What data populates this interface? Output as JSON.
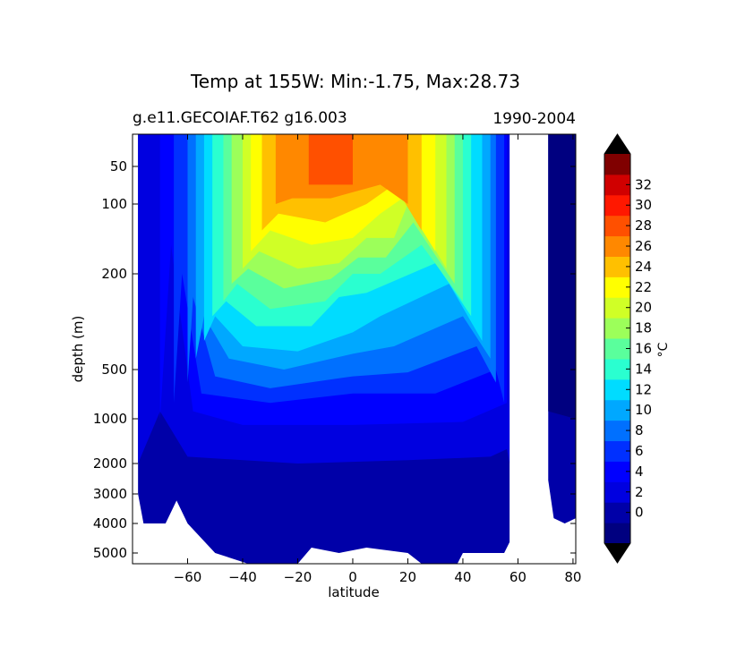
{
  "chart_data": {
    "type": "contourf",
    "title": "Temp at 155W: Min:-1.75, Max:28.73",
    "subtitle_left": "g.e11.GECOIAF.T62 g16.003",
    "subtitle_right": "1990-2004",
    "xlabel": "latitude",
    "ylabel": "depth (m)",
    "xlim": [
      -80,
      81
    ],
    "ylim": [
      5500,
      10
    ],
    "y_scale": "log-like (inverted)",
    "x_ticks": [
      {
        "value": -60,
        "label": "−60"
      },
      {
        "value": -40,
        "label": "−40"
      },
      {
        "value": -20,
        "label": "−20"
      },
      {
        "value": 0,
        "label": "0"
      },
      {
        "value": 20,
        "label": "20"
      },
      {
        "value": 40,
        "label": "40"
      },
      {
        "value": 60,
        "label": "60"
      },
      {
        "value": 80,
        "label": "80"
      }
    ],
    "y_ticks": [
      {
        "value": 50,
        "label": "50"
      },
      {
        "value": 100,
        "label": "100"
      },
      {
        "value": 200,
        "label": "200"
      },
      {
        "value": 500,
        "label": "500"
      },
      {
        "value": 1000,
        "label": "1000"
      },
      {
        "value": 2000,
        "label": "2000"
      },
      {
        "value": 3000,
        "label": "3000"
      },
      {
        "value": 4000,
        "label": "4000"
      },
      {
        "value": 5000,
        "label": "5000"
      }
    ],
    "colorbar": {
      "label": "°C",
      "ticks": [
        "0",
        "2",
        "4",
        "6",
        "8",
        "10",
        "12",
        "14",
        "16",
        "18",
        "20",
        "22",
        "24",
        "26",
        "28",
        "30",
        "32"
      ],
      "levels": [
        -2,
        0,
        2,
        4,
        6,
        8,
        10,
        12,
        14,
        16,
        18,
        20,
        22,
        24,
        26,
        28,
        30,
        32,
        34
      ],
      "colors": [
        "#000080",
        "#0000a8",
        "#0000e0",
        "#0000ff",
        "#0030ff",
        "#0070ff",
        "#00a8ff",
        "#00dcff",
        "#2affd0",
        "#5aff9c",
        "#9cff5a",
        "#d0ff26",
        "#ffff00",
        "#ffc000",
        "#ff8800",
        "#ff5000",
        "#ff1800",
        "#d00000",
        "#800000"
      ],
      "extend_low_color": "#000000",
      "extend_high_color": "#000000"
    },
    "data_gaps": [
      {
        "description": "no data (land) between ~57N and ~71N"
      }
    ],
    "contour_bands": [
      {
        "level": 2,
        "region": "deep water below ~1500 m"
      },
      {
        "level": 4,
        "region": "upper boundary ~1000-1600 m"
      },
      {
        "level": 28,
        "region": "warm pool ~15S-0 near surface"
      }
    ]
  }
}
